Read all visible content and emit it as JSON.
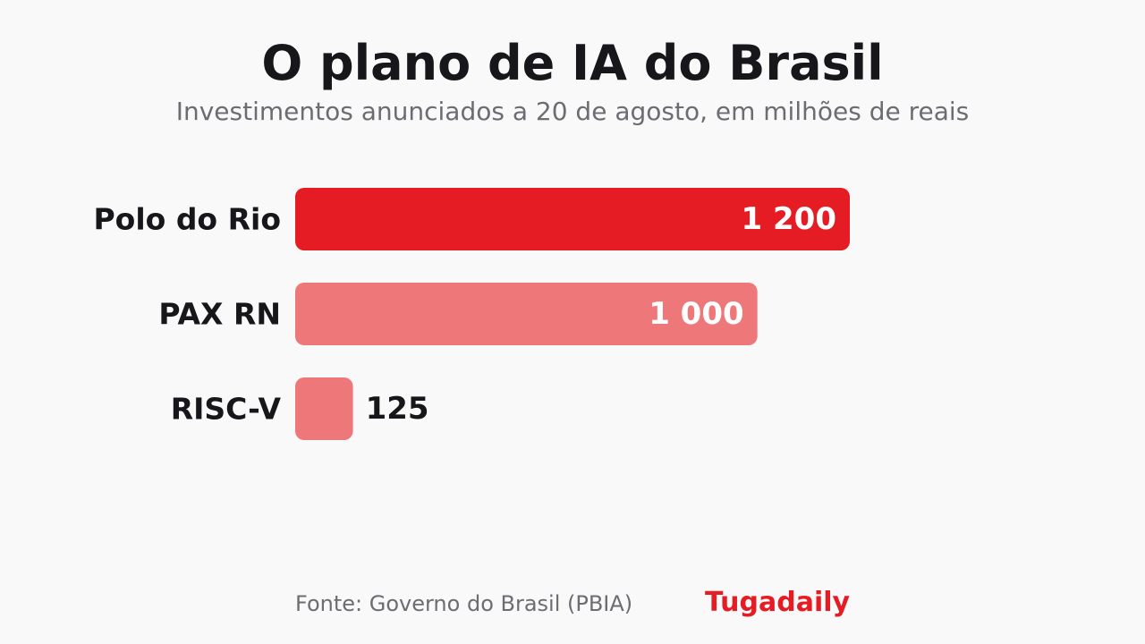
{
  "title": "O plano de IA do Brasil",
  "subtitle": "Investimentos anunciados a 20 de agosto, em milhões de reais",
  "footer": {
    "source": "Fonte: Governo do Brasil (PBIA)",
    "brand": "Tugadaily"
  },
  "colors": {
    "primary": "#e51c24",
    "secondary": "#ee777a",
    "label_dark": "#17171b",
    "label_light": "#ffffff",
    "brand": "#e51c24"
  },
  "chart_data": {
    "type": "bar",
    "orientation": "horizontal",
    "categories": [
      "Polo do Rio",
      "PAX RN",
      "RISC-V"
    ],
    "values": [
      1200,
      1000,
      125
    ],
    "value_labels": [
      "1 200",
      "1 000",
      "125"
    ],
    "xlim": [
      0,
      1200
    ],
    "grid": false,
    "legend": "none"
  }
}
